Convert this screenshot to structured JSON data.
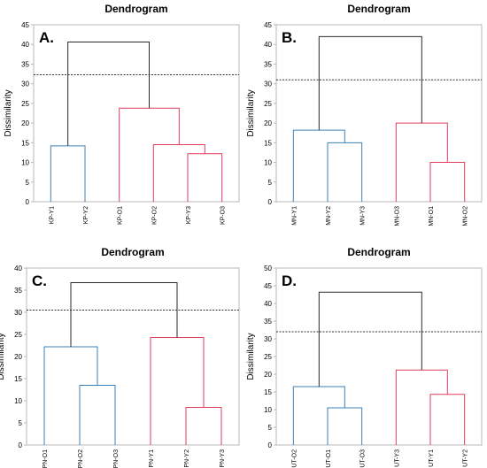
{
  "colors": {
    "axis_frame": "#b8b8b8",
    "text": "#000000",
    "root_link": "#2b2b2b",
    "cluster_blue": "#3f80b4",
    "cluster_red": "#e23e5c",
    "cut_line": "#333333"
  },
  "chart_data": [
    {
      "type": "dendrogram",
      "panel_label": "A.",
      "title": "Dendrogram",
      "ylabel": "Dissimilarity",
      "xlabel": "",
      "ylim": [
        0,
        45
      ],
      "yticks": [
        0,
        5,
        10,
        15,
        20,
        25,
        30,
        35,
        40,
        45
      ],
      "grid": false,
      "leaves": [
        "KP-Y1",
        "KP-Y2",
        "KP-O1",
        "KP-O2",
        "KP-Y3",
        "KP-O3"
      ],
      "cut_level": 32.3,
      "merges": [
        {
          "left": 4,
          "right": 5,
          "height": 12.2,
          "color": "red"
        },
        {
          "left": 3,
          "right": "m0",
          "height": 14.5,
          "color": "red"
        },
        {
          "left": 0,
          "right": 1,
          "height": 14.2,
          "color": "blue"
        },
        {
          "left": 2,
          "right": "m1",
          "height": 23.8,
          "color": "red"
        },
        {
          "left": "m2",
          "right": "m3",
          "height": 40.6,
          "color": "root"
        }
      ]
    },
    {
      "type": "dendrogram",
      "panel_label": "B.",
      "title": "Dendrogram",
      "ylabel": "Dissimilarity",
      "xlabel": "",
      "ylim": [
        0,
        45
      ],
      "yticks": [
        0,
        5,
        10,
        15,
        20,
        25,
        30,
        35,
        40,
        45
      ],
      "grid": false,
      "leaves": [
        "MN-Y1",
        "MN-Y2",
        "MN-Y3",
        "MN-O3",
        "MN-O1",
        "MN-O2"
      ],
      "cut_level": 31.0,
      "merges": [
        {
          "left": 4,
          "right": 5,
          "height": 10.0,
          "color": "red"
        },
        {
          "left": 1,
          "right": 2,
          "height": 15.0,
          "color": "blue"
        },
        {
          "left": 0,
          "right": "m1",
          "height": 18.2,
          "color": "blue"
        },
        {
          "left": 3,
          "right": "m0",
          "height": 20.0,
          "color": "red"
        },
        {
          "left": "m2",
          "right": "m3",
          "height": 42.0,
          "color": "root"
        }
      ]
    },
    {
      "type": "dendrogram",
      "panel_label": "C.",
      "title": "Dendrogram",
      "ylabel": "Dissimilarity",
      "xlabel": "",
      "ylim": [
        0,
        40
      ],
      "yticks": [
        0,
        5,
        10,
        15,
        20,
        25,
        30,
        35,
        40
      ],
      "grid": false,
      "leaves": [
        "PN-O1",
        "PN-O2",
        "PN-O3",
        "PN-Y1",
        "PN-Y2",
        "PN-Y3"
      ],
      "cut_level": 30.5,
      "merges": [
        {
          "left": 4,
          "right": 5,
          "height": 8.5,
          "color": "red"
        },
        {
          "left": 1,
          "right": 2,
          "height": 13.5,
          "color": "blue"
        },
        {
          "left": 0,
          "right": "m1",
          "height": 22.2,
          "color": "blue"
        },
        {
          "left": 3,
          "right": "m0",
          "height": 24.3,
          "color": "red"
        },
        {
          "left": "m2",
          "right": "m3",
          "height": 36.7,
          "color": "root"
        }
      ]
    },
    {
      "type": "dendrogram",
      "panel_label": "D.",
      "title": "Dendrogram",
      "ylabel": "Dissimilarity",
      "xlabel": "",
      "ylim": [
        0,
        50
      ],
      "yticks": [
        0,
        5,
        10,
        15,
        20,
        25,
        30,
        35,
        40,
        45,
        50
      ],
      "grid": false,
      "leaves": [
        "UT-O2",
        "UT-O1",
        "UT-O3",
        "UT-Y3",
        "UT-Y1",
        "UT-Y2"
      ],
      "cut_level": 32.0,
      "merges": [
        {
          "left": 1,
          "right": 2,
          "height": 10.5,
          "color": "blue"
        },
        {
          "left": 4,
          "right": 5,
          "height": 14.3,
          "color": "red"
        },
        {
          "left": 0,
          "right": "m0",
          "height": 16.5,
          "color": "blue"
        },
        {
          "left": 3,
          "right": "m1",
          "height": 21.2,
          "color": "red"
        },
        {
          "left": "m2",
          "right": "m3",
          "height": 43.2,
          "color": "root"
        }
      ]
    }
  ]
}
